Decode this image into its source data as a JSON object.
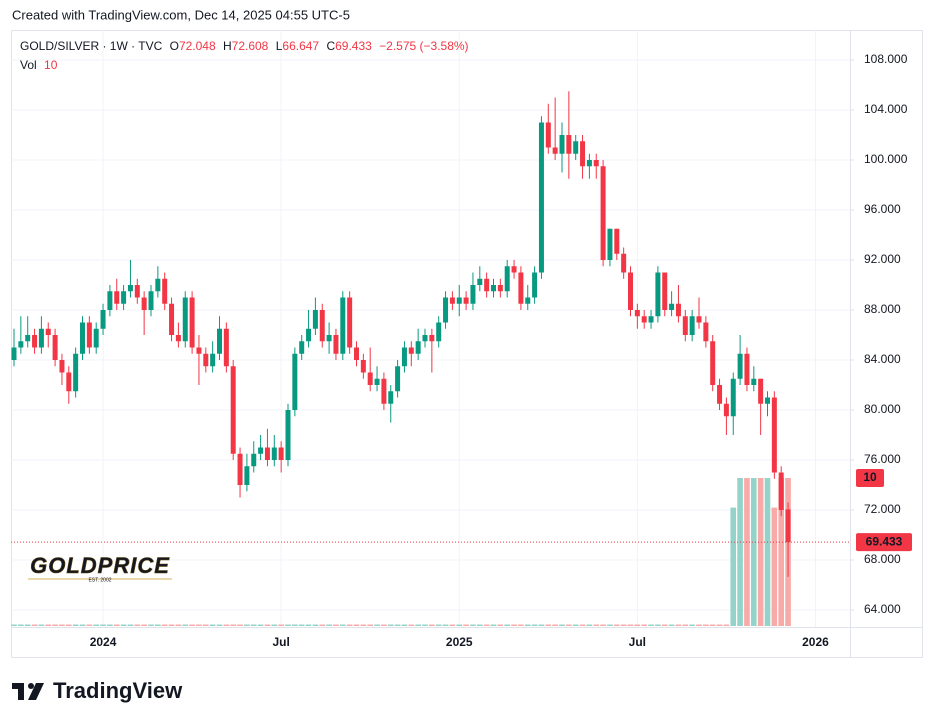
{
  "page": {
    "created": "Created with TradingView.com, Dec 14, 2025 04:55 UTC-5",
    "brand": "TradingView",
    "watermark": "GOLDPRICE",
    "watermark_sub": "EST. 2002"
  },
  "header": {
    "symbol": "GOLD/SILVER · 1W · TVC",
    "open_label": "O",
    "high_label": "H",
    "low_label": "L",
    "close_label": "C",
    "change": "−2.575 (−3.58%)"
  },
  "chart_data": {
    "type": "candlestick",
    "categories": [
      null,
      null,
      null,
      null,
      null,
      null,
      null,
      null,
      null,
      null,
      null,
      null,
      null,
      "2024",
      null,
      null,
      null,
      null,
      null,
      null,
      null,
      null,
      null,
      null,
      null,
      null,
      null,
      null,
      null,
      null,
      null,
      null,
      null,
      null,
      null,
      null,
      null,
      null,
      null,
      "Jul",
      null,
      null,
      null,
      null,
      null,
      null,
      null,
      null,
      null,
      null,
      null,
      null,
      null,
      null,
      null,
      null,
      null,
      null,
      null,
      null,
      null,
      null,
      null,
      null,
      null,
      "2025",
      null,
      null,
      null,
      null,
      null,
      null,
      null,
      null,
      null,
      null,
      null,
      null,
      null,
      null,
      null,
      null,
      null,
      null,
      null,
      null,
      null,
      null,
      null,
      null,
      null,
      "Jul",
      null,
      null,
      null,
      null,
      null,
      null,
      null,
      null,
      null,
      null,
      null,
      null,
      null,
      null,
      null,
      null,
      null,
      null,
      null,
      null,
      null,
      null,
      null,
      null,
      null,
      "2026",
      null,
      null
    ],
    "opens": [
      84.0,
      85.0,
      85.5,
      86.0,
      85.0,
      86.5,
      86.0,
      84.0,
      83.0,
      81.5,
      84.5,
      87.0,
      85.0,
      86.5,
      88.0,
      89.5,
      88.5,
      89.5,
      90.0,
      89.0,
      88.0,
      89.5,
      90.5,
      88.5,
      86.0,
      85.5,
      89.0,
      85.0,
      84.5,
      83.5,
      84.5,
      86.5,
      83.5,
      76.5,
      74.0,
      75.5,
      76.5,
      77.0,
      76.0,
      77.0,
      76.0,
      80.0,
      84.5,
      85.5,
      86.5,
      88.0,
      85.5,
      86.0,
      84.5,
      89.0,
      85.0,
      84.0,
      83.0,
      82.0,
      82.5,
      80.5,
      81.5,
      83.5,
      85.0,
      84.5,
      85.5,
      86.0,
      85.5,
      87.0,
      89.0,
      88.5,
      89.0,
      88.5,
      90.0,
      90.5,
      89.5,
      90.0,
      89.5,
      91.5,
      91.0,
      88.5,
      89.0,
      91.0,
      103.0,
      101.0,
      100.5,
      102.0,
      100.5,
      101.5,
      99.5,
      100.0,
      99.5,
      92.0,
      94.5,
      92.5,
      91.0,
      88.0,
      87.5,
      87.0,
      87.5,
      91.0,
      88.0,
      88.5,
      87.5,
      86.0,
      87.5,
      87.0,
      85.5,
      82.0,
      80.5,
      79.5,
      82.5,
      84.5,
      82.0,
      82.5,
      80.5,
      81.0,
      75.0,
      72.048,
      null,
      null,
      null,
      null,
      null,
      null
    ],
    "highs": [
      86.5,
      87.5,
      87.5,
      86.5,
      87.5,
      87.0,
      86.5,
      84.5,
      83.5,
      85.0,
      87.5,
      87.5,
      87.0,
      88.5,
      90.0,
      90.5,
      90.0,
      92.0,
      90.5,
      89.5,
      90.0,
      91.5,
      91.0,
      89.0,
      87.0,
      89.5,
      89.5,
      86.0,
      85.0,
      85.5,
      87.5,
      87.0,
      84.0,
      77.0,
      76.5,
      77.5,
      78.0,
      78.5,
      78.0,
      77.5,
      80.5,
      85.0,
      86.0,
      88.0,
      89.0,
      88.5,
      87.0,
      86.5,
      89.5,
      89.5,
      85.5,
      84.5,
      85.0,
      83.5,
      83.0,
      82.0,
      84.0,
      85.5,
      85.5,
      86.5,
      86.5,
      86.5,
      87.5,
      89.5,
      89.5,
      90.0,
      89.5,
      91.0,
      91.5,
      91.0,
      90.5,
      90.5,
      92.0,
      92.0,
      91.5,
      90.0,
      91.5,
      103.5,
      104.5,
      105.0,
      103.0,
      105.5,
      102.0,
      102.0,
      100.5,
      100.5,
      100.0,
      94.5,
      94.5,
      93.0,
      91.5,
      88.5,
      88.0,
      88.0,
      91.5,
      91.0,
      89.5,
      90.0,
      88.0,
      88.0,
      89.0,
      87.5,
      86.0,
      82.5,
      81.0,
      83.0,
      86.0,
      85.0,
      83.5,
      82.5,
      81.5,
      81.5,
      75.5,
      72.608,
      null,
      null,
      null,
      null,
      null,
      null
    ],
    "lows": [
      83.5,
      84.5,
      85.0,
      84.5,
      84.5,
      85.0,
      83.5,
      82.0,
      80.5,
      81.0,
      84.0,
      84.5,
      84.5,
      86.0,
      87.5,
      88.0,
      88.0,
      89.0,
      88.5,
      86.0,
      87.5,
      89.0,
      88.0,
      85.5,
      85.0,
      85.0,
      84.5,
      82.0,
      83.0,
      83.0,
      84.0,
      83.0,
      76.0,
      73.0,
      73.5,
      75.0,
      76.0,
      75.5,
      75.5,
      75.0,
      75.5,
      79.5,
      84.0,
      85.0,
      86.0,
      85.0,
      84.5,
      84.0,
      84.0,
      84.5,
      83.5,
      82.5,
      81.5,
      81.5,
      80.0,
      79.0,
      81.0,
      83.0,
      83.5,
      84.0,
      85.0,
      83.0,
      85.0,
      86.5,
      88.0,
      87.5,
      88.0,
      88.0,
      89.5,
      89.0,
      89.0,
      89.0,
      89.0,
      90.5,
      88.0,
      88.0,
      88.5,
      90.5,
      100.5,
      100.0,
      99.0,
      98.5,
      100.0,
      98.5,
      98.5,
      98.5,
      91.5,
      91.5,
      92.0,
      90.5,
      87.5,
      86.5,
      86.5,
      86.5,
      87.0,
      87.5,
      87.5,
      87.0,
      85.5,
      85.5,
      86.5,
      85.0,
      81.5,
      80.0,
      78.0,
      78.0,
      82.0,
      81.5,
      81.5,
      78.0,
      79.5,
      74.5,
      71.5,
      66.647,
      null,
      null,
      null,
      null,
      null,
      null
    ],
    "closes": [
      85.0,
      85.5,
      86.0,
      85.0,
      86.5,
      86.0,
      84.0,
      83.0,
      81.5,
      84.5,
      87.0,
      85.0,
      86.5,
      88.0,
      89.5,
      88.5,
      89.5,
      90.0,
      89.0,
      88.0,
      89.5,
      90.5,
      88.5,
      86.0,
      85.5,
      89.0,
      85.0,
      84.5,
      83.5,
      84.5,
      86.5,
      83.5,
      76.5,
      74.0,
      75.5,
      76.5,
      77.0,
      76.0,
      77.0,
      76.0,
      80.0,
      84.5,
      85.5,
      86.5,
      88.0,
      85.5,
      86.0,
      84.5,
      89.0,
      85.0,
      84.0,
      83.0,
      82.0,
      82.5,
      80.5,
      81.5,
      83.5,
      85.0,
      84.5,
      85.5,
      86.0,
      85.5,
      87.0,
      89.0,
      88.5,
      89.0,
      88.5,
      90.0,
      90.5,
      89.5,
      90.0,
      89.5,
      91.5,
      91.0,
      88.5,
      89.0,
      91.0,
      103.0,
      101.0,
      100.5,
      102.0,
      100.5,
      101.5,
      99.5,
      100.0,
      99.5,
      92.0,
      94.5,
      92.5,
      91.0,
      88.0,
      87.5,
      87.0,
      87.5,
      91.0,
      88.0,
      88.5,
      87.5,
      86.0,
      87.5,
      87.0,
      85.5,
      82.0,
      80.5,
      79.5,
      82.5,
      84.5,
      82.0,
      82.5,
      80.5,
      81.0,
      75.0,
      72.0,
      69.433,
      null,
      null,
      null,
      null,
      null,
      null
    ],
    "volume": {
      "name": "Vol",
      "values": [
        0.1,
        0.1,
        0.1,
        0.1,
        0.1,
        0.1,
        0.1,
        0.1,
        0.1,
        0.1,
        0.1,
        0.1,
        0.1,
        0.1,
        0.1,
        0.1,
        0.1,
        0.1,
        0.1,
        0.1,
        0.1,
        0.1,
        0.1,
        0.1,
        0.1,
        0.1,
        0.1,
        0.1,
        0.1,
        0.1,
        0.1,
        0.1,
        0.1,
        0.1,
        0.1,
        0.1,
        0.1,
        0.1,
        0.1,
        0.1,
        0.1,
        0.1,
        0.1,
        0.1,
        0.1,
        0.1,
        0.1,
        0.1,
        0.1,
        0.1,
        0.1,
        0.1,
        0.1,
        0.1,
        0.1,
        0.1,
        0.1,
        0.1,
        0.1,
        0.1,
        0.1,
        0.1,
        0.1,
        0.1,
        0.1,
        0.1,
        0.1,
        0.1,
        0.1,
        0.1,
        0.1,
        0.1,
        0.1,
        0.1,
        0.1,
        0.1,
        0.1,
        0.1,
        0.1,
        0.1,
        0.1,
        0.1,
        0.1,
        0.1,
        0.1,
        0.1,
        0.1,
        0.1,
        0.1,
        0.1,
        0.1,
        0.1,
        0.1,
        0.1,
        0.1,
        0.1,
        0.1,
        0.1,
        0.1,
        0.1,
        0.1,
        0.1,
        0.1,
        0.1,
        0.1,
        8,
        10,
        10,
        10,
        10,
        10,
        8,
        10,
        10,
        null,
        null,
        null,
        null,
        null,
        null
      ],
      "up_color": "#93d3c9",
      "down_color": "#f7aaa8"
    },
    "up_color": "#089981",
    "down_color": "#f23645",
    "ylim": [
      62.64,
      110.4
    ],
    "yticks": [
      {
        "value": 64,
        "label": "64.000"
      },
      {
        "value": 68,
        "label": "68.000"
      },
      {
        "value": 72,
        "label": "72.000"
      },
      {
        "value": 76,
        "label": "76.000"
      },
      {
        "value": 80,
        "label": "80.000"
      },
      {
        "value": 84,
        "label": "84.000"
      },
      {
        "value": 88,
        "label": "88.000"
      },
      {
        "value": 92,
        "label": "92.000"
      },
      {
        "value": 96,
        "label": "96.000"
      },
      {
        "value": 100,
        "label": "100.000"
      },
      {
        "value": 104,
        "label": "104.000"
      },
      {
        "value": 108,
        "label": "108.000"
      }
    ],
    "grid": true
  }
}
